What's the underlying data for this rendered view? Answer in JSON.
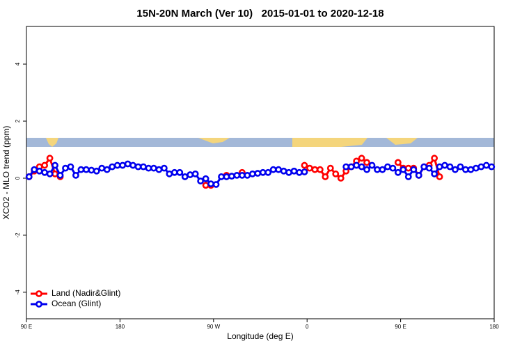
{
  "chart_data": {
    "type": "line",
    "title": "15N-20N March (Ver 10)   2015-01-01 to 2020-12-18",
    "x_label": "Longitude (deg E)",
    "y_label": "XCO2 - MLO trend (ppm)",
    "xlim": [
      90,
      540
    ],
    "xticks": [
      {
        "value": 90,
        "label": "90 E"
      },
      {
        "value": 180,
        "label": "180"
      },
      {
        "value": 270,
        "label": "90 W"
      },
      {
        "value": 360,
        "label": "0"
      },
      {
        "value": 450,
        "label": "90 E"
      },
      {
        "value": 540,
        "label": "180"
      }
    ],
    "ylim": [
      -4.93,
      5.32
    ],
    "yticks": [
      -4,
      -2,
      0,
      2,
      4
    ],
    "legend": "bottom-left",
    "series": [
      {
        "name": "Land (Nadir&Glint)",
        "color": "#ff0000",
        "x": [
          92.5,
          97.5,
          102.5,
          107.5,
          112.5,
          117.5,
          122.5,
          127.5,
          262.5,
          267.5,
          272.5,
          282.5,
          287.5,
          297.5,
          302.5,
          357.5,
          362.5,
          367.5,
          372.5,
          377.5,
          382.5,
          387.5,
          392.5,
          397.5,
          402.5,
          407.5,
          412.5,
          417.5,
          422.5,
          447.5,
          452.5,
          457.5,
          462.5,
          467.5,
          472.5,
          477.5,
          482.5,
          487.5
        ],
        "values": [
          0.05,
          0.25,
          0.4,
          0.45,
          0.7,
          0.15,
          0.05,
          null,
          -0.25,
          -0.25,
          null,
          0.1,
          null,
          0.2,
          null,
          0.45,
          0.35,
          0.3,
          0.3,
          0.05,
          0.35,
          0.15,
          0,
          0.25,
          0.4,
          0.6,
          0.7,
          0.55,
          null,
          0.55,
          0.35,
          0.35,
          0.35,
          0.1,
          0.4,
          0.45,
          0.7,
          0.05
        ]
      },
      {
        "name": "Ocean (Glint)",
        "color": "#0000ee",
        "x": [
          92.5,
          97.5,
          102.5,
          107.5,
          112.5,
          117.5,
          122.5,
          127.5,
          132.5,
          137.5,
          142.5,
          147.5,
          152.5,
          157.5,
          162.5,
          167.5,
          172.5,
          177.5,
          182.5,
          187.5,
          192.5,
          197.5,
          202.5,
          207.5,
          212.5,
          217.5,
          222.5,
          227.5,
          232.5,
          237.5,
          242.5,
          247.5,
          252.5,
          257.5,
          262.5,
          267.5,
          272.5,
          277.5,
          282.5,
          287.5,
          292.5,
          297.5,
          302.5,
          307.5,
          312.5,
          317.5,
          322.5,
          327.5,
          332.5,
          337.5,
          342.5,
          347.5,
          352.5,
          357.5,
          362.5,
          367.5,
          372.5,
          377.5,
          382.5,
          387.5,
          392.5,
          397.5,
          402.5,
          407.5,
          412.5,
          417.5,
          422.5,
          427.5,
          432.5,
          437.5,
          442.5,
          447.5,
          452.5,
          457.5,
          462.5,
          467.5,
          472.5,
          477.5,
          482.5,
          487.5,
          492.5,
          497.5,
          502.5,
          507.5,
          512.5,
          517.5,
          522.5,
          527.5,
          532.5,
          537.5
        ],
        "values": [
          0.05,
          0.3,
          0.25,
          0.2,
          0.15,
          0.45,
          0.1,
          0.35,
          0.4,
          0.1,
          0.3,
          0.3,
          0.28,
          0.25,
          0.35,
          0.3,
          0.4,
          0.45,
          0.45,
          0.5,
          0.45,
          0.4,
          0.4,
          0.35,
          0.35,
          0.3,
          0.35,
          0.15,
          0.2,
          0.2,
          0.05,
          0.12,
          0.15,
          -0.1,
          -0.02,
          -0.2,
          -0.22,
          0.05,
          0.05,
          0.07,
          0.1,
          0.1,
          0.1,
          0.15,
          0.17,
          0.2,
          0.2,
          0.3,
          0.3,
          0.25,
          0.2,
          0.25,
          0.2,
          0.22,
          null,
          null,
          null,
          null,
          null,
          null,
          null,
          0.4,
          0.4,
          0.45,
          0.4,
          0.3,
          0.45,
          0.3,
          0.3,
          0.4,
          0.35,
          0.2,
          0.3,
          0.05,
          0.3,
          0.1,
          0.4,
          0.35,
          0.15,
          0.4,
          0.45,
          0.4,
          0.3,
          0.4,
          0.3,
          0.3,
          0.35,
          0.4,
          0.45,
          0.4
        ]
      }
    ]
  }
}
